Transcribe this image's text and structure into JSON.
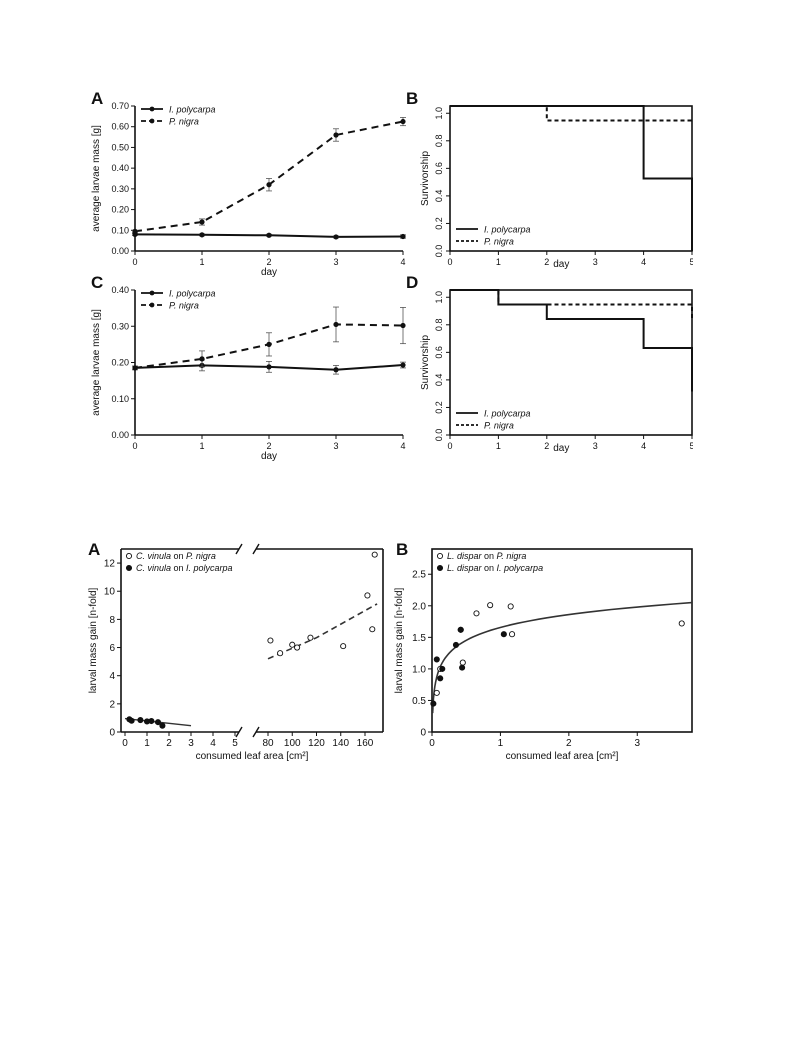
{
  "figure1": {
    "panels": [
      {
        "letter": "A",
        "chart_data": {
          "type": "line",
          "xlabel": "day",
          "ylabel": "average larvae mass [g]",
          "x": [
            0,
            1,
            2,
            3,
            4
          ],
          "xticks": [
            "0",
            "1",
            "2",
            "3",
            "4"
          ],
          "ylim": [
            0,
            0.7
          ],
          "yticks": [
            "0.00",
            "0.10",
            "0.20",
            "0.30",
            "0.40",
            "0.50",
            "0.60",
            "0.70"
          ],
          "legend": "top-left",
          "series": [
            {
              "name": "I. polycarpa",
              "style": "solid",
              "values": [
                0.08,
                0.078,
                0.076,
                0.068,
                0.07
              ],
              "err": [
                0.005,
                0.005,
                0.005,
                0.005,
                0.008
              ]
            },
            {
              "name": "P. nigra",
              "style": "dashed",
              "values": [
                0.095,
                0.14,
                0.32,
                0.56,
                0.625
              ],
              "err": [
                0.005,
                0.015,
                0.03,
                0.03,
                0.02
              ]
            }
          ]
        }
      },
      {
        "letter": "B",
        "chart_data": {
          "type": "line",
          "step": true,
          "xlabel": "day",
          "ylabel": "Survivorship",
          "xticks": [
            "0",
            "1",
            "2",
            "3",
            "4",
            "5"
          ],
          "ylim": [
            0,
            1
          ],
          "yticks": [
            "0.0",
            "0.2",
            "0.4",
            "0.6",
            "0.8",
            "1.0"
          ],
          "legend": "bottom-left",
          "series": [
            {
              "name": "I. polycarpa",
              "style": "solid",
              "x": [
                0,
                4,
                5
              ],
              "values": [
                1.0,
                0.5,
                0.0
              ]
            },
            {
              "name": "P. nigra",
              "style": "dashed",
              "x": [
                0,
                2,
                5
              ],
              "values": [
                1.0,
                0.9,
                0.9
              ]
            }
          ]
        }
      },
      {
        "letter": "C",
        "chart_data": {
          "type": "line",
          "xlabel": "day",
          "ylabel": "average larvae mass [g]",
          "x": [
            0,
            1,
            2,
            3,
            4
          ],
          "xticks": [
            "0",
            "1",
            "2",
            "3",
            "4"
          ],
          "ylim": [
            0,
            0.4
          ],
          "yticks": [
            "0.00",
            "0.10",
            "0.20",
            "0.30",
            "0.40"
          ],
          "legend": "top-left",
          "series": [
            {
              "name": "I. polycarpa",
              "style": "solid",
              "values": [
                0.185,
                0.192,
                0.188,
                0.18,
                0.193
              ],
              "err": [
                0.005,
                0.015,
                0.015,
                0.012,
                0.008
              ]
            },
            {
              "name": "P. nigra",
              "style": "dashed",
              "values": [
                0.185,
                0.21,
                0.25,
                0.305,
                0.302
              ],
              "err": [
                0.005,
                0.022,
                0.032,
                0.048,
                0.05
              ]
            }
          ]
        }
      },
      {
        "letter": "D",
        "chart_data": {
          "type": "line",
          "step": true,
          "xlabel": "day",
          "ylabel": "Survivorship",
          "xticks": [
            "0",
            "1",
            "2",
            "3",
            "4",
            "5"
          ],
          "ylim": [
            0,
            1
          ],
          "yticks": [
            "0.0",
            "0.2",
            "0.4",
            "0.6",
            "0.8",
            "1.0"
          ],
          "legend": "bottom-left",
          "series": [
            {
              "name": "I. polycarpa",
              "style": "solid",
              "x": [
                0,
                1,
                2,
                4,
                5
              ],
              "values": [
                1.0,
                0.9,
                0.8,
                0.6,
                0.3
              ]
            },
            {
              "name": "P. nigra",
              "style": "dashed",
              "x": [
                0,
                1,
                2,
                5
              ],
              "values": [
                1.0,
                0.9,
                0.9,
                0.8
              ]
            }
          ]
        }
      }
    ]
  },
  "figure2": {
    "panels": [
      {
        "letter": "A",
        "chart_data": {
          "type": "scatter",
          "xlabel": "consumed leaf area [cm²]",
          "ylabel": "larval mass gain [n-fold]",
          "broken_x_axis": true,
          "xticks_left": [
            "0",
            "1",
            "2",
            "3",
            "4",
            "5"
          ],
          "xticks_right": [
            "80",
            "100",
            "120",
            "140",
            "160"
          ],
          "ylim": [
            0,
            13
          ],
          "yticks": [
            "0",
            "2",
            "4",
            "6",
            "8",
            "10",
            "12"
          ],
          "legend": "top-left",
          "series": [
            {
              "name_italic": "C. vinula",
              "name_on": " on ",
              "name_host": "P. nigra",
              "marker": "open",
              "x": [
                82,
                90,
                100,
                104,
                115,
                142,
                162,
                166,
                168
              ],
              "values": [
                6.5,
                5.6,
                6.2,
                6.0,
                6.7,
                6.1,
                9.7,
                7.3,
                12.6
              ]
            },
            {
              "name_italic": "C. vinula",
              "name_on": " on ",
              "name_host": "I. polycarpa",
              "marker": "filled",
              "x": [
                0.2,
                0.3,
                0.7,
                1.0,
                1.2,
                1.5,
                1.7
              ],
              "values": [
                0.9,
                0.8,
                0.85,
                0.75,
                0.78,
                0.7,
                0.45
              ]
            }
          ],
          "fits": [
            {
              "style": "dashed",
              "x": [
                80,
                170
              ],
              "values": [
                5.2,
                9.1
              ]
            },
            {
              "style": "solid",
              "x": [
                0,
                3
              ],
              "values": [
                0.95,
                0.45
              ]
            }
          ]
        }
      },
      {
        "letter": "B",
        "chart_data": {
          "type": "scatter",
          "xlabel": "consumed leaf area [cm²]",
          "ylabel": "larval mass gain [n-fold]",
          "xlim": [
            0,
            3.8
          ],
          "xticks": [
            "0",
            "1",
            "2",
            "3"
          ],
          "ylim": [
            0,
            2.9
          ],
          "yticks": [
            "0",
            "0.5",
            "1.0",
            "1.5",
            "2.0",
            "2.5"
          ],
          "legend": "top-left",
          "series": [
            {
              "name_italic": "L. dispar",
              "name_on": " on ",
              "name_host": "P. nigra",
              "marker": "open",
              "x": [
                0.07,
                0.12,
                0.42,
                0.45,
                0.65,
                0.85,
                1.15,
                1.17,
                3.65
              ],
              "values": [
                0.62,
                1.0,
                1.62,
                1.1,
                1.88,
                2.01,
                1.99,
                1.55,
                1.72
              ]
            },
            {
              "name_italic": "L. dispar",
              "name_on": " on ",
              "name_host": "I. polycarpa",
              "marker": "filled",
              "x": [
                0.02,
                0.07,
                0.12,
                0.15,
                0.35,
                0.42,
                0.44,
                1.05
              ],
              "values": [
                0.45,
                1.15,
                0.85,
                1.0,
                1.38,
                1.62,
                1.02,
                1.55
              ]
            }
          ],
          "fits": [
            {
              "style": "solid",
              "model": "log",
              "x0": 0.01,
              "x1": 3.8,
              "y_at_x0": 0.3,
              "y_at_x1": 2.05
            }
          ]
        }
      }
    ]
  }
}
